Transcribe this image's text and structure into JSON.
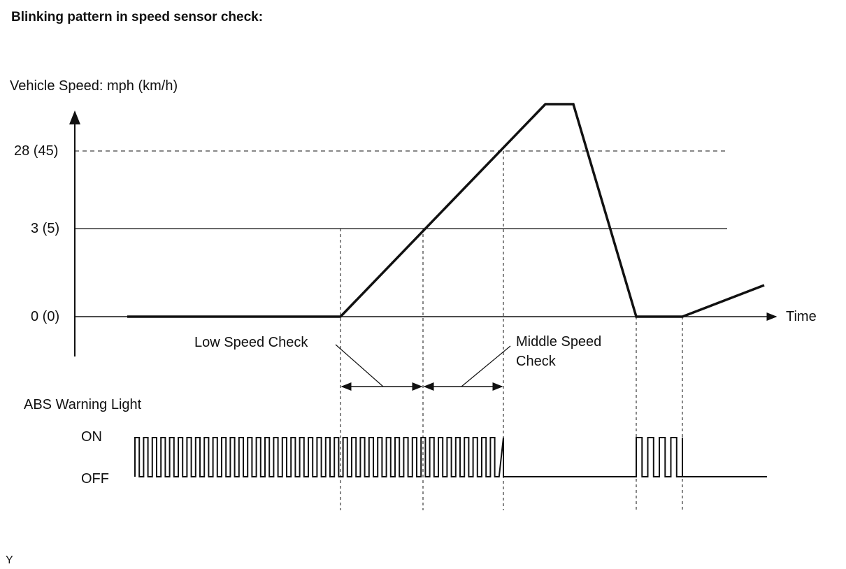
{
  "title": "Blinking pattern in speed sensor check:",
  "speed_chart": {
    "y_axis_label": "Vehicle Speed: mph (km/h)",
    "y_ticks": [
      "28 (45)",
      "3 (5)",
      "0 (0)"
    ],
    "x_axis_label": "Time"
  },
  "annotations": {
    "low_speed_check": "Low Speed Check",
    "middle_speed_check_line1": "Middle Speed",
    "middle_speed_check_line2": "Check"
  },
  "abs_light": {
    "label": "ABS Warning Light",
    "on_label": "ON",
    "off_label": "OFF"
  },
  "corner_mark": "Y",
  "colors": {
    "ink": "#111111",
    "background": "#ffffff"
  }
}
